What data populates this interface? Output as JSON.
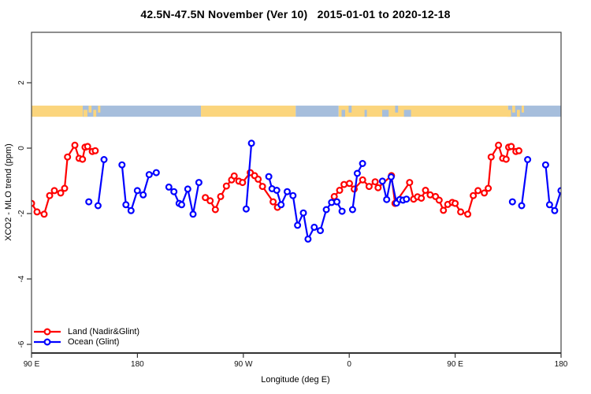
{
  "chart_data": {
    "type": "line",
    "title": "42.5N-47.5N November (Ver 10)   2015-01-01 to 2020-12-18",
    "xlabel": "Longitude (deg E)",
    "ylabel": "XCO2 - MLO trend (ppm)",
    "xlim": [
      90,
      540
    ],
    "ylim": [
      -6.27,
      3.54
    ],
    "grid": false,
    "legend_position": "bottom-left",
    "marker": "open-circle",
    "x_ticks": [
      {
        "lon": 90,
        "label": "90 E"
      },
      {
        "lon": 180,
        "label": "180"
      },
      {
        "lon": 270,
        "label": "90 W"
      },
      {
        "lon": 360,
        "label": "0"
      },
      {
        "lon": 450,
        "label": "90 E"
      },
      {
        "lon": 540,
        "label": "180"
      }
    ],
    "y_ticks": [
      {
        "value": 2,
        "label": "2"
      },
      {
        "value": 0,
        "label": "0"
      },
      {
        "value": -2,
        "label": "-2"
      },
      {
        "value": -4,
        "label": "-4"
      },
      {
        "value": -6,
        "label": "-6"
      }
    ],
    "series": [
      {
        "name": "Land (Nadir&Glint)",
        "color": "#ff0000",
        "chains": [
          [
            [
              90,
              -1.69
            ],
            [
              94.7,
              -1.95
            ],
            [
              100.7,
              -2.02
            ],
            [
              105.4,
              -1.45
            ],
            [
              109.4,
              -1.3
            ],
            [
              114.8,
              -1.37
            ],
            [
              118.1,
              -1.23
            ],
            [
              120.6,
              -0.27
            ],
            [
              126.8,
              0.09
            ],
            [
              130.4,
              -0.31
            ],
            [
              133.3,
              -0.34
            ],
            [
              135.5,
              0.03
            ],
            [
              137.7,
              0.05
            ],
            [
              141.6,
              -0.1
            ],
            [
              144.2,
              -0.08
            ]
          ],
          [
            [
              237.7,
              -1.51
            ],
            [
              241.8,
              -1.61
            ],
            [
              246.2,
              -1.88
            ],
            [
              250.7,
              -1.48
            ],
            [
              255.6,
              -1.16
            ],
            [
              260.0,
              -0.97
            ],
            [
              262.2,
              -0.85
            ],
            [
              266.2,
              -1.01
            ],
            [
              269.3,
              -1.05
            ],
            [
              275.9,
              -0.75
            ],
            [
              279.6,
              -0.84
            ],
            [
              282.6,
              -0.95
            ],
            [
              286.3,
              -1.17
            ],
            [
              295.3,
              -1.64
            ],
            [
              299.0,
              -1.81
            ]
          ],
          [
            [
              347.3,
              -1.48
            ],
            [
              351.8,
              -1.29
            ],
            [
              355.6,
              -1.11
            ],
            [
              360.2,
              -1.08
            ],
            [
              364.2,
              -1.25
            ],
            [
              371.4,
              -0.97
            ],
            [
              376.9,
              -1.17
            ],
            [
              382.0,
              -1.03
            ],
            [
              384.5,
              -1.21
            ],
            [
              395.9,
              -0.84
            ],
            [
              398.9,
              -1.69
            ],
            [
              411.3,
              -1.05
            ],
            [
              414.7,
              -1.56
            ],
            [
              418.0,
              -1.49
            ],
            [
              421.3,
              -1.53
            ],
            [
              424.8,
              -1.29
            ],
            [
              428.8,
              -1.43
            ],
            [
              433.3,
              -1.48
            ],
            [
              436.4,
              -1.59
            ],
            [
              440.0,
              -1.9
            ],
            [
              443.7,
              -1.72
            ],
            [
              447.5,
              -1.66
            ],
            [
              450.0,
              -1.69
            ],
            [
              454.7,
              -1.95
            ],
            [
              460.7,
              -2.02
            ],
            [
              465.4,
              -1.45
            ],
            [
              469.4,
              -1.3
            ],
            [
              474.8,
              -1.37
            ],
            [
              478.1,
              -1.23
            ],
            [
              480.6,
              -0.27
            ],
            [
              486.8,
              0.09
            ],
            [
              490.4,
              -0.31
            ],
            [
              493.3,
              -0.34
            ],
            [
              495.5,
              0.03
            ],
            [
              497.7,
              0.05
            ],
            [
              501.6,
              -0.1
            ],
            [
              504.2,
              -0.08
            ]
          ]
        ]
      },
      {
        "name": "Ocean (Glint)",
        "color": "#0000ff",
        "chains": [
          [
            [
              138.7,
              -1.64
            ]
          ],
          [
            [
              146.5,
              -1.76
            ],
            [
              151.6,
              -0.35
            ]
          ],
          [
            [
              166.9,
              -0.51
            ],
            [
              170.2,
              -1.73
            ],
            [
              174.6,
              -1.91
            ],
            [
              179.9,
              -1.3
            ],
            [
              184.9,
              -1.43
            ],
            [
              190.0,
              -0.81
            ],
            [
              196.0,
              -0.75
            ]
          ],
          [
            [
              206.7,
              -1.19
            ],
            [
              211.0,
              -1.33
            ],
            [
              215.4,
              -1.69
            ],
            [
              217.6,
              -1.73
            ],
            [
              222.8,
              -1.25
            ],
            [
              227.3,
              -2.02
            ],
            [
              232.2,
              -1.05
            ]
          ],
          [
            [
              272.4,
              -1.86
            ],
            [
              276.9,
              0.15
            ]
          ],
          [
            [
              291.6,
              -0.87
            ],
            [
              294.4,
              -1.24
            ],
            [
              298.4,
              -1.29
            ],
            [
              302.1,
              -1.73
            ],
            [
              307.3,
              -1.33
            ],
            [
              312.2,
              -1.45
            ],
            [
              316.1,
              -2.36
            ],
            [
              321.0,
              -1.98
            ],
            [
              325.0,
              -2.78
            ],
            [
              330.3,
              -2.42
            ],
            [
              335.4,
              -2.52
            ],
            [
              340.5,
              -1.88
            ],
            [
              345.0,
              -1.66
            ],
            [
              349.5,
              -1.64
            ],
            [
              353.9,
              -1.93
            ]
          ],
          [
            [
              362.8,
              -1.88
            ],
            [
              366.8,
              -0.77
            ],
            [
              371.3,
              -0.47
            ]
          ],
          [
            [
              388.2,
              -1.01
            ],
            [
              391.8,
              -1.57
            ],
            [
              395.6,
              -0.88
            ],
            [
              400.2,
              -1.68
            ],
            [
              402.9,
              -1.57
            ],
            [
              405.7,
              -1.59
            ],
            [
              408.6,
              -1.56
            ]
          ],
          [
            [
              498.7,
              -1.64
            ]
          ],
          [
            [
              506.5,
              -1.76
            ],
            [
              511.6,
              -0.35
            ]
          ],
          [
            [
              526.9,
              -0.51
            ],
            [
              530.2,
              -1.73
            ],
            [
              534.6,
              -1.91
            ],
            [
              539.9,
              -1.3
            ]
          ]
        ]
      }
    ],
    "map_band": {
      "v_top": 1.3,
      "v_bottom": 0.96,
      "segments": [
        {
          "from": 90,
          "to": 133.5,
          "type": "land"
        },
        {
          "from": 133.5,
          "to": 234,
          "type": "ocean"
        },
        {
          "from": 234,
          "to": 314.5,
          "type": "land"
        },
        {
          "from": 314.5,
          "to": 351,
          "type": "ocean"
        },
        {
          "from": 351,
          "to": 495,
          "type": "land"
        },
        {
          "from": 495,
          "to": 540,
          "type": "ocean"
        }
      ],
      "speckles": [
        {
          "from": 134,
          "to": 137.5,
          "type": "land",
          "band": "lower"
        },
        {
          "from": 138.5,
          "to": 141,
          "type": "land",
          "band": "upper"
        },
        {
          "from": 142.5,
          "to": 145,
          "type": "land",
          "band": "lower"
        },
        {
          "from": 146.5,
          "to": 148.5,
          "type": "land",
          "band": "upper"
        },
        {
          "from": 353.5,
          "to": 356.5,
          "type": "ocean",
          "band": "lower"
        },
        {
          "from": 359.5,
          "to": 362,
          "type": "ocean",
          "band": "upper"
        },
        {
          "from": 373,
          "to": 375,
          "type": "ocean",
          "band": "lower"
        },
        {
          "from": 388,
          "to": 393.5,
          "type": "ocean",
          "band": "lower"
        },
        {
          "from": 399,
          "to": 401.5,
          "type": "ocean",
          "band": "upper"
        },
        {
          "from": 406.5,
          "to": 412.5,
          "type": "ocean",
          "band": "lower"
        },
        {
          "from": 494,
          "to": 497.5,
          "type": "land",
          "band": "lower"
        },
        {
          "from": 498.5,
          "to": 501,
          "type": "land",
          "band": "upper"
        },
        {
          "from": 502.5,
          "to": 505,
          "type": "land",
          "band": "lower"
        },
        {
          "from": 506.5,
          "to": 508.5,
          "type": "land",
          "band": "upper"
        }
      ]
    },
    "colors": {
      "land_series": "#ff0000",
      "ocean_series": "#0000ff",
      "map_land": "#fbd57d",
      "map_ocean": "#a6bedc",
      "axis": "#333333"
    }
  },
  "legend": {
    "land_label": "Land (Nadir&Glint)",
    "ocean_label": "Ocean (Glint)"
  }
}
